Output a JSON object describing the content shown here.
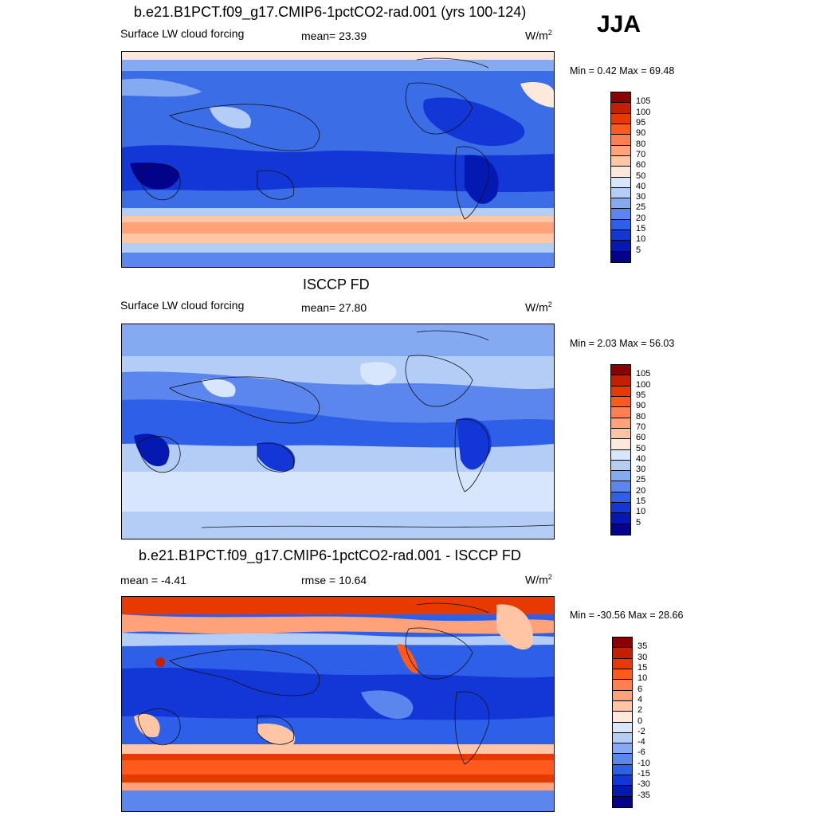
{
  "season": "JJA",
  "units_base": "W/m",
  "units_exp": "2",
  "panels": [
    {
      "title": "b.e21.B1PCT.f09_g17.CMIP6-1pctCO2-rad.001 (yrs 100-124)",
      "left_label": "Surface LW cloud forcing",
      "center_label": "mean=  23.39",
      "min_max": "Min =   0.42 Max =  69.48",
      "map_name": "model-map"
    },
    {
      "title": "ISCCP FD",
      "left_label": "Surface LW cloud forcing",
      "center_label": "mean=  27.80",
      "min_max": "Min =   2.03 Max =  56.03",
      "map_name": "obs-map"
    },
    {
      "title": "b.e21.B1PCT.f09_g17.CMIP6-1pctCO2-rad.001 - ISCCP FD",
      "left_label": "mean =  -4.41",
      "center_label": "rmse =  10.64",
      "min_max": "Min = -30.56 Max =  28.66",
      "map_name": "diff-map"
    }
  ],
  "colorbars": {
    "abs_levels": [
      "105",
      "100",
      "95",
      "90",
      "80",
      "70",
      "60",
      "50",
      "40",
      "30",
      "25",
      "20",
      "15",
      "10",
      "5"
    ],
    "abs_colors": [
      "#8b0000",
      "#c41f00",
      "#e83a00",
      "#ff5a1e",
      "#ff7f50",
      "#ffa27a",
      "#ffc6a6",
      "#fde8dc",
      "#d7e6fb",
      "#b3cdf7",
      "#84abf2",
      "#5a86ee",
      "#2e5fe8",
      "#1237d6",
      "#0419b2",
      "#02028a"
    ],
    "diff_levels": [
      "35",
      "30",
      "15",
      "10",
      "6",
      "4",
      "2",
      "0",
      "-2",
      "-4",
      "-6",
      "-10",
      "-15",
      "-30",
      "-35"
    ],
    "diff_colors": [
      "#8b0000",
      "#c41f00",
      "#e83a00",
      "#ff5a1e",
      "#ff7f50",
      "#ffa27a",
      "#ffc6a6",
      "#fde8dc",
      "#d7e6fb",
      "#b3cdf7",
      "#84abf2",
      "#5a86ee",
      "#2e5fe8",
      "#1237d6",
      "#0419b2",
      "#02028a"
    ]
  }
}
